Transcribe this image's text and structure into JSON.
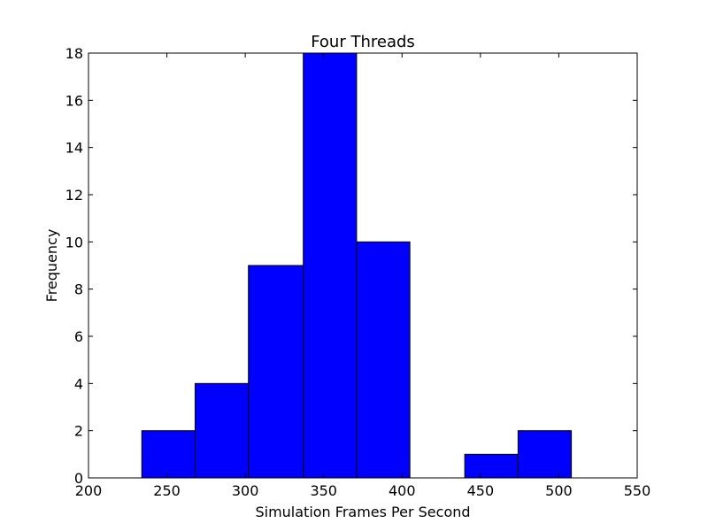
{
  "chart_data": {
    "type": "bar",
    "title": "Four Threads",
    "xlabel": "Simulation Frames Per Second",
    "ylabel": "Frequency",
    "xlim": [
      200,
      550
    ],
    "ylim": [
      0,
      18
    ],
    "xticks": [
      200,
      250,
      300,
      350,
      400,
      450,
      500,
      550
    ],
    "yticks": [
      0,
      2,
      4,
      6,
      8,
      10,
      12,
      14,
      16,
      18
    ],
    "bins": [
      {
        "x0": 234,
        "x1": 268,
        "value": 2
      },
      {
        "x0": 268,
        "x1": 302,
        "value": 4
      },
      {
        "x0": 302,
        "x1": 337,
        "value": 9
      },
      {
        "x0": 337,
        "x1": 371,
        "value": 18
      },
      {
        "x0": 371,
        "x1": 405,
        "value": 10
      },
      {
        "x0": 405,
        "x1": 440,
        "value": 0
      },
      {
        "x0": 440,
        "x1": 474,
        "value": 1
      },
      {
        "x0": 474,
        "x1": 508,
        "value": 2
      }
    ],
    "bar_color": "#0000ff",
    "edge_color": "#000000",
    "grid": false
  }
}
